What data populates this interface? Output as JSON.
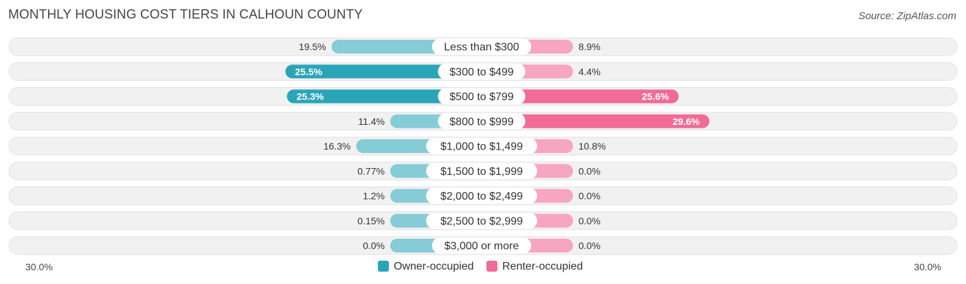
{
  "title": "MONTHLY HOUSING COST TIERS IN CALHOUN COUNTY",
  "source": "Source: ZipAtlas.com",
  "colors": {
    "owner_strong": "#2AA5B8",
    "owner_light": "#86CCD6",
    "renter_strong": "#F06B96",
    "renter_light": "#F6A6C0",
    "track": "#EFEFEF"
  },
  "axis": {
    "left_label": "30.0%",
    "right_label": "30.0%"
  },
  "legend": {
    "owner_label": "Owner-occupied",
    "renter_label": "Renter-occupied"
  },
  "chart_data": {
    "type": "bar",
    "orientation": "horizontal-diverging",
    "categories": [
      "Less than $300",
      "$300 to $499",
      "$500 to $799",
      "$800 to $999",
      "$1,000 to $1,499",
      "$1,500 to $1,999",
      "$2,000 to $2,499",
      "$2,500 to $2,999",
      "$3,000 or more"
    ],
    "series": [
      {
        "name": "Owner-occupied",
        "values": [
          19.5,
          25.5,
          25.3,
          11.4,
          16.3,
          0.77,
          1.2,
          0.15,
          0.0
        ],
        "labels": [
          "19.5%",
          "25.5%",
          "25.3%",
          "11.4%",
          "16.3%",
          "0.77%",
          "1.2%",
          "0.15%",
          "0.0%"
        ]
      },
      {
        "name": "Renter-occupied",
        "values": [
          8.9,
          4.4,
          25.6,
          29.6,
          10.8,
          0.0,
          0.0,
          0.0,
          0.0
        ],
        "labels": [
          "8.9%",
          "4.4%",
          "25.6%",
          "29.6%",
          "10.8%",
          "0.0%",
          "0.0%",
          "0.0%",
          "0.0%"
        ]
      }
    ],
    "xlim": [
      -30,
      30
    ],
    "legend_position": "bottom-center"
  }
}
